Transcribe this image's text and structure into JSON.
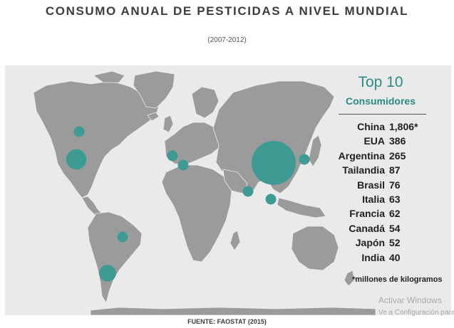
{
  "title": "CONSUMO ANUAL DE PESTICIDAS A NIVEL MUNDIAL",
  "subtitle": "(2007-2012)",
  "legend": {
    "title": "Top 10",
    "subtitle": "Consumidores",
    "unit_note": "*millones de kilogramos"
  },
  "ranking": [
    {
      "country": "China",
      "value": "1,806*"
    },
    {
      "country": "EUA",
      "value": "386"
    },
    {
      "country": "Argentina",
      "value": "265"
    },
    {
      "country": "Tailandia",
      "value": "87"
    },
    {
      "country": "Brasil",
      "value": "76"
    },
    {
      "country": "Italia",
      "value": "63"
    },
    {
      "country": "Francia",
      "value": "62"
    },
    {
      "country": "Canadá",
      "value": "54"
    },
    {
      "country": "Japón",
      "value": "52"
    },
    {
      "country": "India",
      "value": "40"
    }
  ],
  "source": "FUENTE: FAOSTAT (2015)",
  "watermark": {
    "title": "Activar Windows",
    "subtitle": "Ve a Configuración para activar Windows."
  },
  "colors": {
    "bubble": "#3e9b93",
    "land": "#9b9b9b",
    "ocean": "#eaeaea",
    "accent": "#2b8c83"
  }
}
